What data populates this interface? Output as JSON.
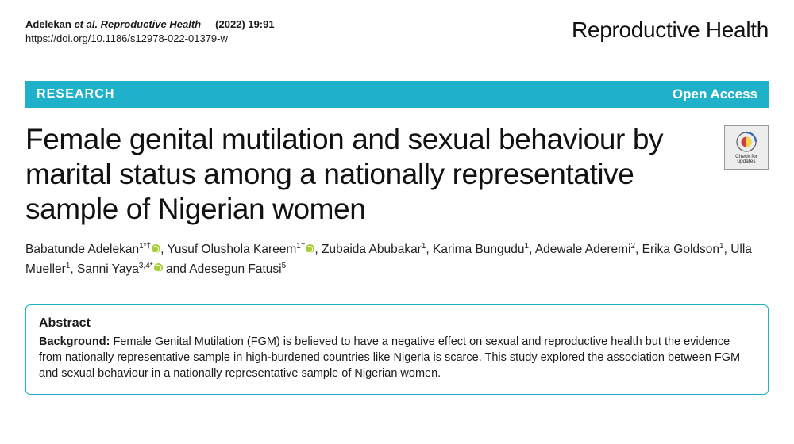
{
  "header": {
    "citation_author": "Adelekan",
    "citation_etal": "et al. Reproductive Health",
    "citation_issue": "(2022) 19:91",
    "doi": "https://doi.org/10.1186/s12978-022-01379-w",
    "journal": "Reproductive Health"
  },
  "banner": {
    "category": "RESEARCH",
    "access": "Open Access",
    "bg_color": "#1fb1c9",
    "fg_color": "#ffffff"
  },
  "article": {
    "title": "Female genital mutilation and sexual behaviour by marital status among a nationally representative sample of Nigerian women",
    "check_updates_label": "Check for\nupdates"
  },
  "authors": [
    {
      "name": "Babatunde Adelekan",
      "affil": "1*†",
      "orcid": true
    },
    {
      "name": "Yusuf Olushola Kareem",
      "affil": "1†",
      "orcid": true
    },
    {
      "name": "Zubaida Abubakar",
      "affil": "1",
      "orcid": false
    },
    {
      "name": "Karima Bungudu",
      "affil": "1",
      "orcid": false
    },
    {
      "name": "Adewale Aderemi",
      "affil": "2",
      "orcid": false
    },
    {
      "name": "Erika Goldson",
      "affil": "1",
      "orcid": false
    },
    {
      "name": "Ulla Mueller",
      "affil": "1",
      "orcid": false
    },
    {
      "name": "Sanni Yaya",
      "affil": "3,4*",
      "orcid": true
    },
    {
      "name": "Adesegun Fatusi",
      "affil": "5",
      "orcid": false
    }
  ],
  "abstract": {
    "heading": "Abstract",
    "background_label": "Background:",
    "background_text": "Female Genital Mutilation (FGM) is believed to have a negative effect on sexual and reproductive health but the evidence from nationally representative sample in high-burdened countries like Nigeria is scarce. This study explored the association between FGM and sexual behaviour in a nationally representative sample of Nigerian women."
  },
  "colors": {
    "text": "#1a1a1a",
    "accent": "#1fb1c9",
    "orcid": "#a6ce39",
    "background": "#ffffff"
  }
}
